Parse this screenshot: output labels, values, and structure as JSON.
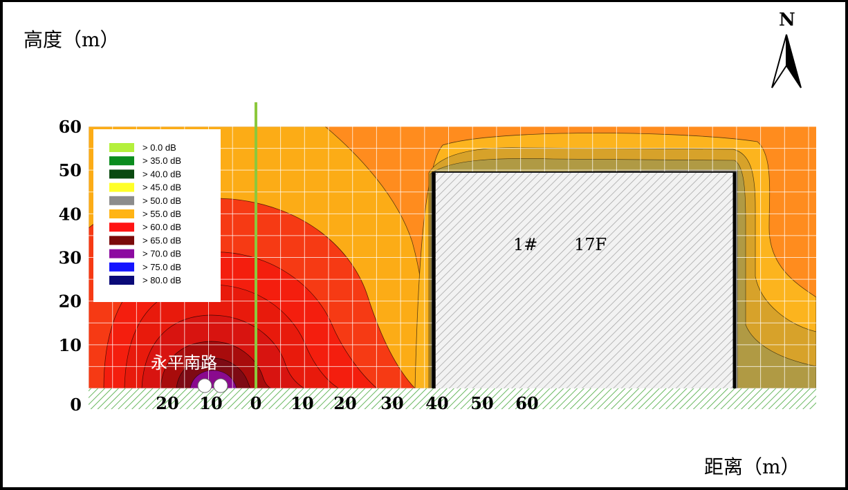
{
  "chart_data": {
    "type": "heatmap",
    "title": "",
    "ylabel": "高度（m）",
    "xlabel": "距离（m）",
    "north_label": "N",
    "y_ticks": [
      "0",
      "10",
      "20",
      "30",
      "40",
      "50",
      "60"
    ],
    "x_ticks": [
      "20",
      "10",
      "0",
      "10",
      "20",
      "30",
      "40",
      "50",
      "60"
    ],
    "ylim": [
      0,
      60
    ],
    "grid": true,
    "legend_position": "top-left",
    "legend": [
      {
        "label": ">   0.0 dB",
        "color": "#b4f03c"
      },
      {
        "label": ">  35.0 dB",
        "color": "#0a8c1e"
      },
      {
        "label": ">  40.0 dB",
        "color": "#0a4a10"
      },
      {
        "label": ">  45.0 dB",
        "color": "#ffff28"
      },
      {
        "label": ">  50.0 dB",
        "color": "#8c8c8c"
      },
      {
        "label": ">  55.0 dB",
        "color": "#ffb414"
      },
      {
        "label": ">  60.0 dB",
        "color": "#ff1414"
      },
      {
        "label": ">  65.0 dB",
        "color": "#7a0a0a"
      },
      {
        "label": ">  70.0 dB",
        "color": "#8c0aa0"
      },
      {
        "label": ">  75.0 dB",
        "color": "#1414ff"
      },
      {
        "label": ">  80.0 dB",
        "color": "#0a0a78"
      }
    ],
    "annotations": {
      "road_label": "永平南路",
      "building_id": "1#",
      "building_floors": "17F"
    },
    "building": {
      "x_range": [
        40,
        115
      ],
      "height": 49
    },
    "receiver_line_x": 0
  }
}
